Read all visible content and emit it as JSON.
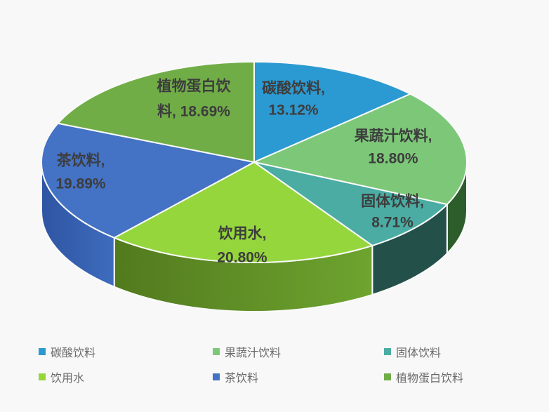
{
  "background_color": "#F8F8F8",
  "chart_data": {
    "type": "pie",
    "style": "3d-extruded",
    "title": "",
    "legend_position": "bottom",
    "label_format": "category, percent",
    "label_color": "#3D3D3D",
    "legend_text_color": "#6A6A6A",
    "slice_border_color": "#FAFAFA",
    "slices": [
      {
        "label": "碳酸饮料",
        "value": 13.12,
        "display": "碳酸饮料, 13.12%",
        "label_lines": [
          "碳酸饮料,",
          "13.12%"
        ],
        "color": "#2C9AD2",
        "side": "#1F6E99"
      },
      {
        "label": "果蔬汁饮料",
        "value": 18.8,
        "display": "果蔬汁饮料, 18.80%",
        "label_lines": [
          "果蔬汁饮料,",
          "18.80%"
        ],
        "color": "#7CC878",
        "side": "#2D5D2B"
      },
      {
        "label": "固体饮料",
        "value": 8.71,
        "display": "固体饮料, 8.71%",
        "label_lines": [
          "固体饮料,",
          "8.71%"
        ],
        "color": "#4BACA3",
        "side": "#24504A"
      },
      {
        "label": "饮用水",
        "value": 20.8,
        "display": "饮用水, 20.80%",
        "label_lines": [
          "饮用水,",
          "20.80%"
        ],
        "color": "#94D63C",
        "side": [
          "#527A1E",
          "#6EA42F"
        ]
      },
      {
        "label": "茶饮料",
        "value": 19.89,
        "display": "茶饮料, 19.89%",
        "label_lines": [
          "茶饮料,",
          "19.89%"
        ],
        "color": "#4472C4",
        "side": [
          "#2E55A3",
          "#3E6CBD"
        ]
      },
      {
        "label": "植物蛋白饮料",
        "value": 18.69,
        "display": "植物蛋白饮料, 18.69%",
        "label_lines": [
          "植物蛋白饮",
          "料, 18.69%"
        ],
        "color": "#70AD47",
        "side": "#4E7A31"
      }
    ],
    "legend_items": [
      "碳酸饮料",
      "果蔬汁饮料",
      "固体饮料",
      "饮用水",
      "茶饮料",
      "植物蛋白饮料"
    ]
  }
}
